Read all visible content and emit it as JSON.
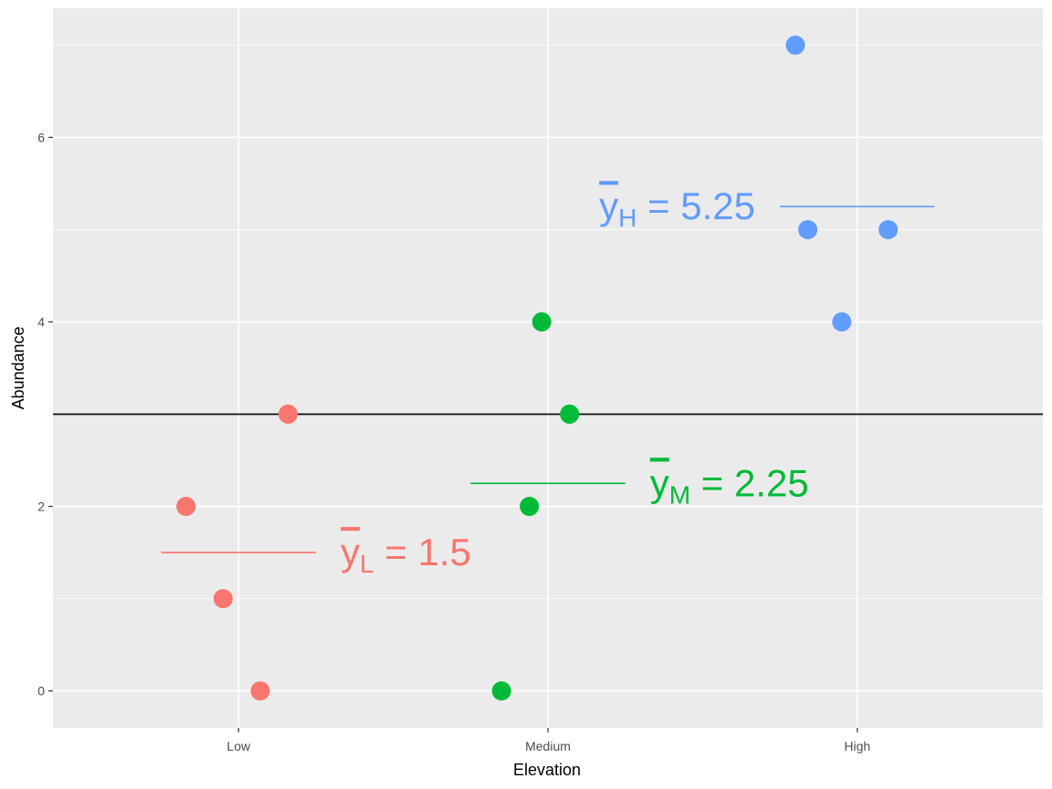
{
  "chart_data": {
    "type": "scatter",
    "xlabel": "Elevation",
    "ylabel": "Abundance",
    "categories": [
      "Low",
      "Medium",
      "High"
    ],
    "ylim": [
      -0.4,
      7.4
    ],
    "yticks": [
      0,
      2,
      4,
      6
    ],
    "grid": true,
    "colors": {
      "Low": "#F8766D",
      "Medium": "#00BA38",
      "High": "#619CFF"
    },
    "points": [
      {
        "group": "Low",
        "x": 0.83,
        "y": 2
      },
      {
        "group": "Low",
        "x": 0.95,
        "y": 1
      },
      {
        "group": "Low",
        "x": 1.07,
        "y": 0
      },
      {
        "group": "Low",
        "x": 1.16,
        "y": 3
      },
      {
        "group": "Medium",
        "x": 1.85,
        "y": 0
      },
      {
        "group": "Medium",
        "x": 1.94,
        "y": 2
      },
      {
        "group": "Medium",
        "x": 1.98,
        "y": 4
      },
      {
        "group": "Medium",
        "x": 2.07,
        "y": 3
      },
      {
        "group": "High",
        "x": 2.8,
        "y": 7
      },
      {
        "group": "High",
        "x": 2.84,
        "y": 5
      },
      {
        "group": "High",
        "x": 2.95,
        "y": 4
      },
      {
        "group": "High",
        "x": 3.1,
        "y": 5
      }
    ],
    "grand_mean": 3,
    "group_means": [
      {
        "group": "Low",
        "value": 1.5,
        "x_from": 0.75,
        "x_to": 1.25,
        "label_main": "y",
        "label_sub": "L",
        "label_rest": "= 1.5"
      },
      {
        "group": "Medium",
        "value": 2.25,
        "x_from": 1.75,
        "x_to": 2.25,
        "label_main": "y",
        "label_sub": "M",
        "label_rest": "= 2.25"
      },
      {
        "group": "High",
        "value": 5.25,
        "x_from": 2.75,
        "x_to": 3.25,
        "label_main": "y",
        "label_sub": "H",
        "label_rest": "= 5.25"
      }
    ]
  }
}
